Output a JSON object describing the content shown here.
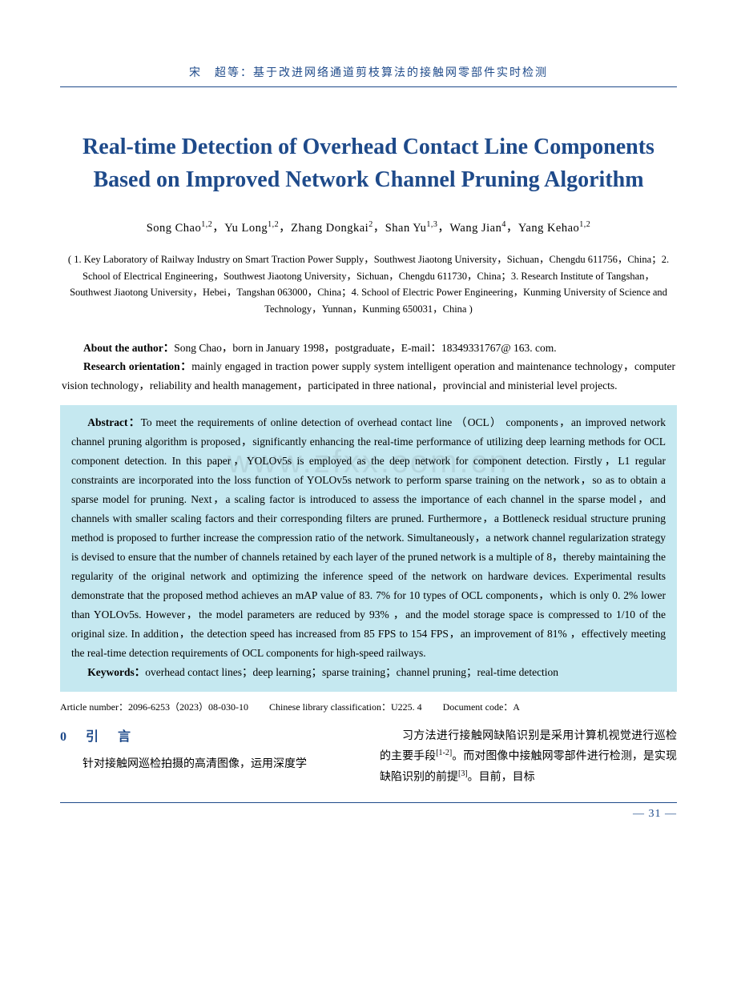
{
  "header": {
    "running": "宋　超等：基于改进网络通道剪枝算法的接触网零部件实时检测"
  },
  "title": "Real-time Detection of Overhead Contact Line Components Based on Improved Network Channel Pruning Algorithm",
  "authors_html": "Song Chao<sup>1,2</sup>，Yu Long<sup>1,2</sup>，Zhang Dongkai<sup>2</sup>，Shan Yu<sup>1,3</sup>，Wang Jian<sup>4</sup>，Yang Kehao<sup>1,2</sup>",
  "affiliations": "( 1. Key Laboratory of Railway Industry on Smart Traction Power Supply，Southwest Jiaotong University，Sichuan，Chengdu 611756，China；2. School of Electrical Engineering，Southwest Jiaotong University，Sichuan，Chengdu 611730，China；3. Research Institute of Tangshan，Southwest Jiaotong University，Hebei，Tangshan 063000，China；4. School of Electric Power Engineering，Kunming University of Science and Technology，Yunnan，Kunming 650031，China )",
  "about": {
    "author_label": "About the author：",
    "author_text": "Song Chao，born in January 1998，postgraduate，E-mail：18349331767@ 163. com.",
    "research_label": "Research orientation：",
    "research_text": "mainly engaged in traction power supply system intelligent operation and maintenance technology，computer vision technology，reliability and health management，participated in three national，provincial and ministerial level projects."
  },
  "abstract": {
    "label": "Abstract：",
    "text": "To meet the requirements of online detection of overhead contact line （OCL） components，an improved network channel pruning algorithm is proposed，significantly enhancing the real-time performance of utilizing deep learning methods for OCL component detection. In this paper，YOLOv5s is employed as the deep network for component detection. Firstly，L1 regular constraints are incorporated into the loss function of YOLOv5s network to perform sparse training on the network，so as to obtain a sparse model for pruning. Next，a scaling factor is introduced to assess the importance of each channel in the sparse model，and channels with smaller scaling factors and their corresponding filters are pruned. Furthermore，a Bottleneck residual structure pruning method is proposed to further increase the compression ratio of the network. Simultaneously，a network channel regularization strategy is devised to ensure that the number of channels retained by each layer of the pruned network is a multiple of 8，thereby maintaining the regularity of the original network and optimizing the inference speed of the network on hardware devices. Experimental results demonstrate that the proposed method achieves an mAP value of 83. 7%  for 10 types of OCL components，which is only 0. 2%  lower than YOLOv5s. However，the model parameters are reduced by 93% ，and the model storage space is compressed to 1/10 of the original size. In addition，the detection speed has increased from 85 FPS to 154 FPS，an improvement of 81% ，effectively meeting the real-time detection requirements of OCL components for high-speed railways.",
    "keywords_label": "Keywords：",
    "keywords_text": "overhead contact lines；deep learning；sparse training；channel pruning；real-time detection"
  },
  "meta": {
    "article_number_label": "Article number：",
    "article_number": "2096-6253（2023）08-030-10",
    "clc_label": "Chinese library classification：",
    "clc": "U225. 4",
    "doc_code_label": "Document code：",
    "doc_code": "A"
  },
  "body": {
    "section0": "0　引　言",
    "col_left": "针对接触网巡检拍摄的高清图像，运用深度学",
    "col_right_html": "习方法进行接触网缺陷识别是采用计算机视觉进行巡检的主要手段<sup>[1-2]</sup>。而对图像中接触网零部件进行检测，是实现缺陷识别的前提<sup>[3]</sup>。目前，目标"
  },
  "page_number": "— 31 —",
  "watermark": "www.zfxx.com.cn",
  "colors": {
    "brand": "#1e4a8a",
    "abstract_bg": "#c5e8f0",
    "text": "#000000",
    "background": "#ffffff"
  }
}
